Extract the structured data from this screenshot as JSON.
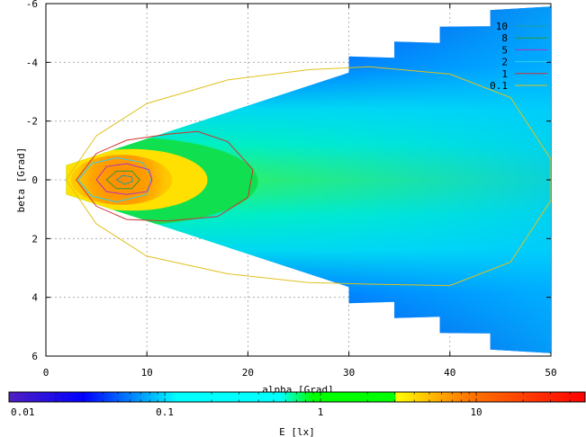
{
  "chart_data": {
    "type": "heatmap",
    "title": "",
    "xlabel": "alpha [Grad]",
    "ylabel": "beta [Grad]",
    "xlim": [
      0,
      50
    ],
    "ylim": [
      -6,
      6
    ],
    "y_axis_inverted": true,
    "xticks": [
      0,
      10,
      20,
      30,
      40,
      50
    ],
    "yticks": [
      -6,
      -4,
      -2,
      0,
      2,
      4,
      6
    ],
    "grid": true,
    "colorbar": {
      "label": "E [lx]",
      "scale": "log",
      "range": [
        0.01,
        50
      ],
      "ticks": [
        0.01,
        0.1,
        1,
        10
      ],
      "tick_labels": [
        "0.01",
        "0.1",
        "1",
        "10"
      ],
      "colors": [
        "#5020c0",
        "#0000ff",
        "#00ffff",
        "#00ff00",
        "#ffff00",
        "#ff8000",
        "#ff0000"
      ]
    },
    "legend": {
      "placement": "top-right",
      "entries": [
        {
          "label": "10",
          "color": "#1fa0a0"
        },
        {
          "label": "8",
          "color": "#2a9a3a"
        },
        {
          "label": "5",
          "color": "#b030c0"
        },
        {
          "label": "2",
          "color": "#30d0e8"
        },
        {
          "label": "1",
          "color": "#d03030"
        },
        {
          "label": "0.1",
          "color": "#e0c020"
        }
      ]
    },
    "region": {
      "x_start": 2,
      "x_end": 50,
      "half_width_at_x_start": 0.5,
      "half_width_at_x_end": 5.9,
      "sawtooth_columns_x": [
        30,
        34.5,
        39,
        44,
        50
      ]
    },
    "contours": [
      {
        "level": 0.1,
        "points": [
          [
            2,
            0
          ],
          [
            5,
            -1.5
          ],
          [
            10,
            -2.6
          ],
          [
            18,
            -3.4
          ],
          [
            26,
            -3.75
          ],
          [
            32,
            -3.85
          ],
          [
            40,
            -3.6
          ],
          [
            46,
            -2.8
          ],
          [
            50,
            -0.7
          ],
          [
            50,
            0.7
          ],
          [
            46,
            2.8
          ],
          [
            40,
            3.6
          ],
          [
            32,
            3.55
          ],
          [
            26,
            3.5
          ],
          [
            18,
            3.2
          ],
          [
            10,
            2.6
          ],
          [
            5,
            1.5
          ],
          [
            2,
            0
          ]
        ]
      },
      {
        "level": 1,
        "points": [
          [
            3,
            0
          ],
          [
            5,
            -0.9
          ],
          [
            8,
            -1.35
          ],
          [
            12,
            -1.55
          ],
          [
            15,
            -1.65
          ],
          [
            18,
            -1.3
          ],
          [
            20.5,
            -0.35
          ],
          [
            20,
            0.6
          ],
          [
            17,
            1.25
          ],
          [
            12,
            1.4
          ],
          [
            8,
            1.35
          ],
          [
            5,
            0.9
          ],
          [
            3,
            0
          ]
        ]
      },
      {
        "level": 2,
        "points": [
          [
            3.2,
            0
          ],
          [
            4.5,
            -0.55
          ],
          [
            7,
            -0.75
          ],
          [
            9.5,
            -0.6
          ],
          [
            10.5,
            -0.1
          ],
          [
            10,
            0.5
          ],
          [
            7,
            0.75
          ],
          [
            4.5,
            0.55
          ],
          [
            3.2,
            0
          ]
        ]
      },
      {
        "level": 5,
        "points": [
          [
            5,
            0
          ],
          [
            6,
            -0.45
          ],
          [
            8,
            -0.55
          ],
          [
            10.2,
            -0.35
          ],
          [
            10.5,
            0
          ],
          [
            10,
            0.4
          ],
          [
            8,
            0.5
          ],
          [
            6,
            0.4
          ],
          [
            5,
            0
          ]
        ]
      },
      {
        "level": 8,
        "points": [
          [
            6,
            0
          ],
          [
            7,
            -0.3
          ],
          [
            8.5,
            -0.3
          ],
          [
            9.3,
            0
          ],
          [
            8.5,
            0.3
          ],
          [
            7,
            0.3
          ],
          [
            6,
            0
          ]
        ]
      },
      {
        "level": 10,
        "points": [
          [
            7,
            0
          ],
          [
            7.6,
            -0.15
          ],
          [
            8.5,
            -0.1
          ],
          [
            8.6,
            0.05
          ],
          [
            7.8,
            0.15
          ],
          [
            7,
            0
          ]
        ]
      }
    ]
  }
}
